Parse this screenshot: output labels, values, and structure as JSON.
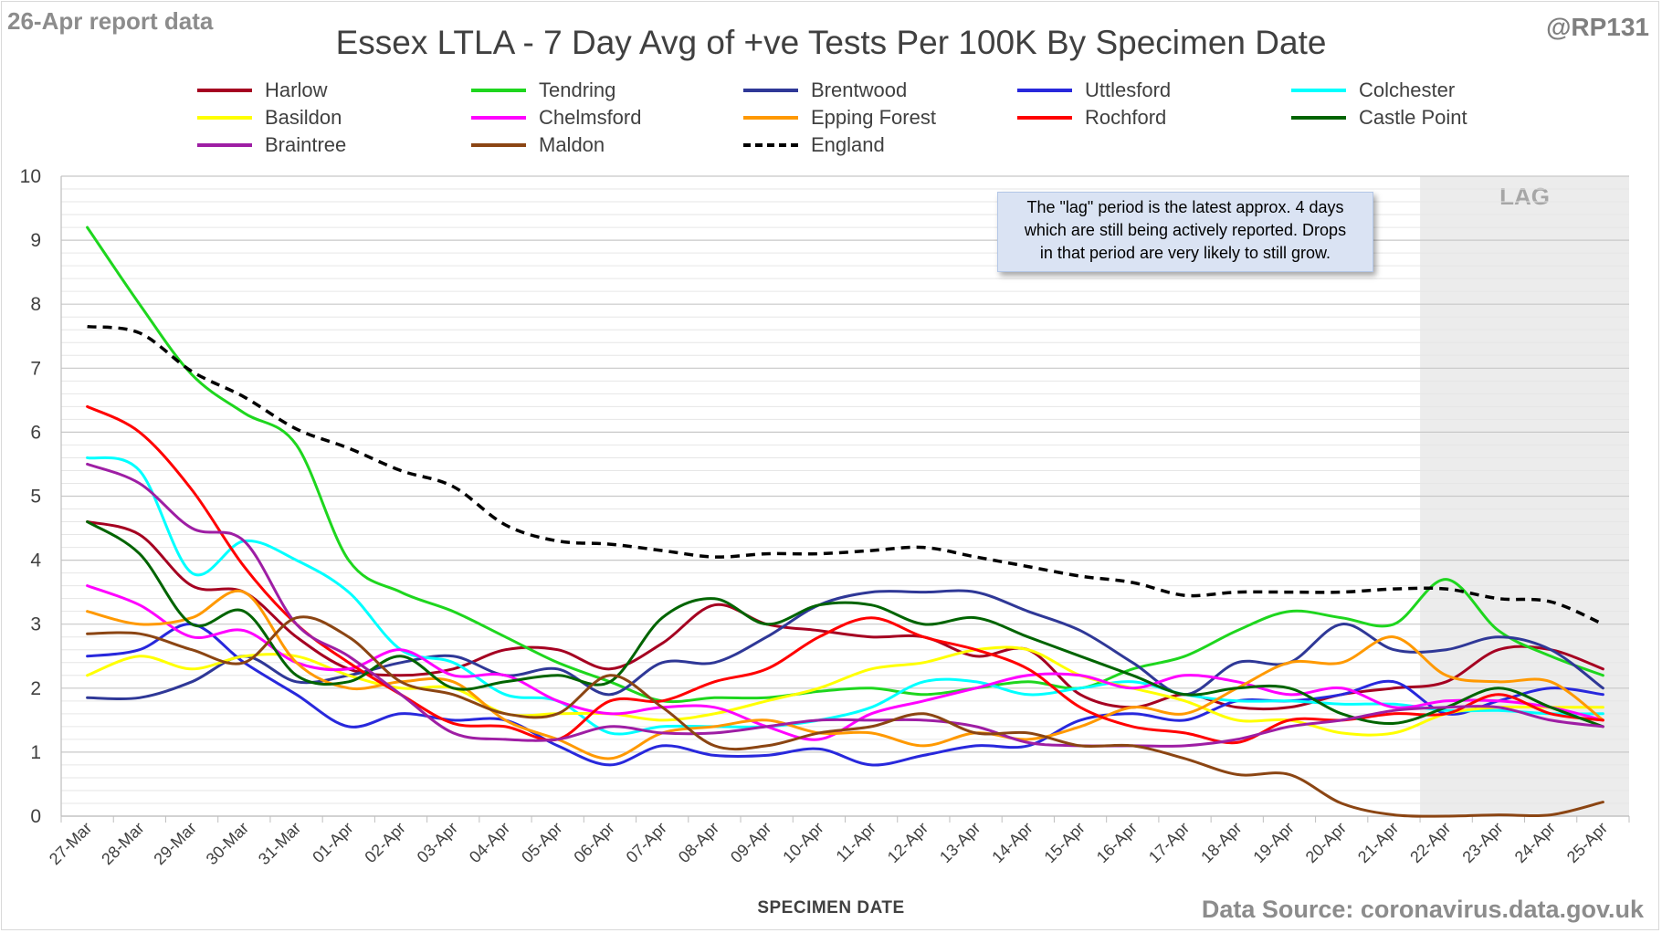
{
  "report_date": "26-Apr report data",
  "handle": "@RP131",
  "source": "Data Source: coronavirus.data.gov.uk",
  "annotation": {
    "line1": "The \"lag\" period is the latest approx. 4 days",
    "line2": "which are still being actively reported.  Drops",
    "line3": "in that period are very likely to still grow."
  },
  "chart_data": {
    "type": "line",
    "title": "Essex LTLA - 7 Day Avg of +ve Tests Per 100K By Specimen Date",
    "xlabel": "SPECIMEN DATE",
    "ylabel": "",
    "ylim": [
      0,
      10
    ],
    "yticks": [
      0,
      1,
      2,
      3,
      4,
      5,
      6,
      7,
      8,
      9,
      10
    ],
    "grid": true,
    "legend_position": "top",
    "lag_label": "LAG",
    "lag_start": "22-Apr",
    "lag_end": "25-Apr",
    "categories": [
      "27-Mar",
      "28-Mar",
      "29-Mar",
      "30-Mar",
      "31-Mar",
      "01-Apr",
      "02-Apr",
      "03-Apr",
      "04-Apr",
      "05-Apr",
      "06-Apr",
      "07-Apr",
      "08-Apr",
      "09-Apr",
      "10-Apr",
      "11-Apr",
      "12-Apr",
      "13-Apr",
      "14-Apr",
      "15-Apr",
      "16-Apr",
      "17-Apr",
      "18-Apr",
      "19-Apr",
      "20-Apr",
      "21-Apr",
      "22-Apr",
      "23-Apr",
      "24-Apr",
      "25-Apr"
    ],
    "series": [
      {
        "name": "Harlow",
        "color": "#a50021",
        "values": [
          4.6,
          4.4,
          3.6,
          3.5,
          2.8,
          2.3,
          2.2,
          2.3,
          2.6,
          2.6,
          2.3,
          2.7,
          3.3,
          3.0,
          2.9,
          2.8,
          2.8,
          2.5,
          2.6,
          1.9,
          1.7,
          1.9,
          1.7,
          1.7,
          1.9,
          2.0,
          2.1,
          2.6,
          2.6,
          2.3
        ]
      },
      {
        "name": "Tendring",
        "color": "#1ed61e",
        "values": [
          9.2,
          8.0,
          6.9,
          6.3,
          5.8,
          4.0,
          3.5,
          3.2,
          2.8,
          2.4,
          2.1,
          1.8,
          1.85,
          1.85,
          1.95,
          2.0,
          1.9,
          2.0,
          2.1,
          2.0,
          2.3,
          2.5,
          2.9,
          3.2,
          3.1,
          3.0,
          3.7,
          2.9,
          2.5,
          2.2
        ]
      },
      {
        "name": "Brentwood",
        "color": "#2f3897",
        "values": [
          1.85,
          1.85,
          2.1,
          2.5,
          2.1,
          2.2,
          2.4,
          2.5,
          2.2,
          2.3,
          1.9,
          2.4,
          2.4,
          2.8,
          3.3,
          3.5,
          3.5,
          3.5,
          3.2,
          2.9,
          2.4,
          1.9,
          2.4,
          2.4,
          3.0,
          2.6,
          2.6,
          2.8,
          2.6,
          2.0
        ]
      },
      {
        "name": "Uttlesford",
        "color": "#2828dc",
        "values": [
          2.5,
          2.6,
          3.0,
          2.4,
          1.9,
          1.4,
          1.6,
          1.5,
          1.5,
          1.1,
          0.8,
          1.1,
          0.95,
          0.95,
          1.05,
          0.8,
          0.95,
          1.1,
          1.1,
          1.5,
          1.6,
          1.5,
          1.8,
          1.8,
          1.9,
          2.1,
          1.6,
          1.8,
          2.0,
          1.9
        ]
      },
      {
        "name": "Colchester",
        "color": "#00ffff",
        "values": [
          5.6,
          5.4,
          3.8,
          4.3,
          4.0,
          3.5,
          2.6,
          2.4,
          1.9,
          1.8,
          1.3,
          1.4,
          1.4,
          1.4,
          1.5,
          1.7,
          2.1,
          2.1,
          1.9,
          2.0,
          2.1,
          1.9,
          1.8,
          1.8,
          1.75,
          1.75,
          1.65,
          1.65,
          1.6,
          1.6
        ]
      },
      {
        "name": "Basildon",
        "color": "#ffff00",
        "values": [
          2.2,
          2.5,
          2.3,
          2.5,
          2.5,
          2.2,
          2.0,
          2.0,
          1.6,
          1.6,
          1.6,
          1.5,
          1.6,
          1.8,
          2.0,
          2.3,
          2.4,
          2.6,
          2.6,
          2.2,
          2.0,
          1.8,
          1.5,
          1.5,
          1.3,
          1.3,
          1.6,
          1.7,
          1.7,
          1.7
        ]
      },
      {
        "name": "Chelmsford",
        "color": "#ff00ff",
        "values": [
          3.6,
          3.3,
          2.8,
          2.9,
          2.4,
          2.3,
          2.6,
          2.2,
          2.2,
          1.8,
          1.6,
          1.7,
          1.7,
          1.4,
          1.2,
          1.6,
          1.8,
          2.0,
          2.2,
          2.2,
          2.0,
          2.2,
          2.1,
          1.9,
          2.0,
          1.7,
          1.8,
          1.8,
          1.7,
          1.5
        ]
      },
      {
        "name": "Epping Forest",
        "color": "#ff9900",
        "values": [
          3.2,
          3.0,
          3.1,
          3.5,
          2.4,
          2.0,
          2.1,
          2.1,
          1.5,
          1.2,
          0.9,
          1.3,
          1.4,
          1.5,
          1.3,
          1.3,
          1.1,
          1.3,
          1.2,
          1.4,
          1.7,
          1.6,
          2.0,
          2.4,
          2.4,
          2.8,
          2.2,
          2.1,
          2.1,
          1.5
        ]
      },
      {
        "name": "Rochford",
        "color": "#ff0000",
        "values": [
          6.4,
          6.0,
          5.1,
          3.9,
          3.0,
          2.4,
          1.9,
          1.45,
          1.4,
          1.2,
          1.8,
          1.8,
          2.1,
          2.3,
          2.8,
          3.1,
          2.8,
          2.6,
          2.3,
          1.7,
          1.4,
          1.3,
          1.15,
          1.5,
          1.5,
          1.6,
          1.6,
          1.9,
          1.6,
          1.5
        ]
      },
      {
        "name": "Castle Point",
        "color": "#006400",
        "values": [
          4.6,
          4.1,
          3.0,
          3.2,
          2.2,
          2.1,
          2.5,
          2.0,
          2.1,
          2.2,
          2.1,
          3.1,
          3.4,
          3.0,
          3.3,
          3.3,
          3.0,
          3.1,
          2.8,
          2.5,
          2.2,
          1.9,
          2.0,
          2.0,
          1.6,
          1.45,
          1.7,
          2.0,
          1.7,
          1.4
        ]
      },
      {
        "name": "Braintree",
        "color": "#9e1ea4",
        "values": [
          5.5,
          5.2,
          4.5,
          4.3,
          3.0,
          2.5,
          1.9,
          1.3,
          1.2,
          1.2,
          1.4,
          1.3,
          1.3,
          1.4,
          1.5,
          1.5,
          1.5,
          1.4,
          1.15,
          1.1,
          1.1,
          1.1,
          1.2,
          1.4,
          1.5,
          1.65,
          1.7,
          1.7,
          1.5,
          1.4
        ]
      },
      {
        "name": "Maldon",
        "color": "#8b4513",
        "values": [
          2.85,
          2.85,
          2.6,
          2.4,
          3.1,
          2.8,
          2.1,
          1.9,
          1.6,
          1.6,
          2.2,
          1.7,
          1.1,
          1.1,
          1.3,
          1.4,
          1.6,
          1.3,
          1.3,
          1.1,
          1.1,
          0.9,
          0.65,
          0.65,
          0.2,
          0.02,
          0.0,
          0.02,
          0.02,
          0.22
        ]
      },
      {
        "name": "England",
        "color": "#000000",
        "dashed": true,
        "values": [
          7.65,
          7.55,
          6.95,
          6.55,
          6.05,
          5.75,
          5.4,
          5.15,
          4.55,
          4.3,
          4.25,
          4.15,
          4.05,
          4.1,
          4.1,
          4.15,
          4.2,
          4.05,
          3.9,
          3.75,
          3.65,
          3.45,
          3.5,
          3.5,
          3.5,
          3.55,
          3.55,
          3.4,
          3.35,
          3.0
        ]
      }
    ]
  }
}
